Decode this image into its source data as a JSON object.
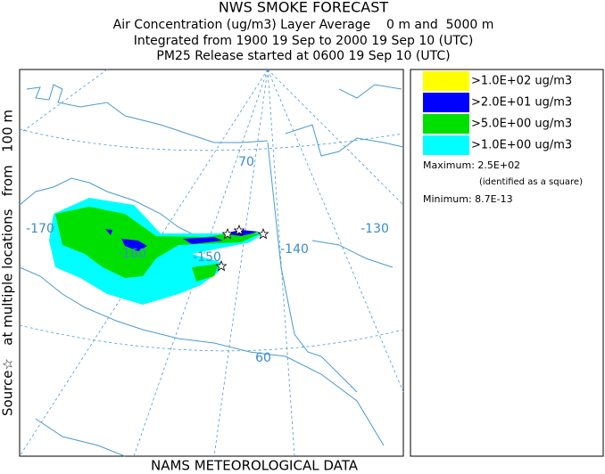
{
  "header": {
    "title": "NWS SMOKE FORECAST",
    "line1": "Air Concentration (ug/m3) Layer Average    0 m and  5000 m",
    "line2": "Integrated from 1900 19 Sep to 2000 19 Sep 10 (UTC)",
    "line3": "PM25 Release started at 0600 19 Sep 10 (UTC)"
  },
  "side_label": "Source☆   at multiple locations   from   100 m",
  "footer": "NAMS METEOROLOGICAL DATA",
  "map": {
    "labels": [
      "-170",
      "-160",
      "-150",
      "-140",
      "-130",
      "70",
      "60"
    ]
  },
  "legend": {
    "items": [
      {
        "label": ">1.0E+02 ug/m3",
        "color": "#ffff00"
      },
      {
        "label": ">2.0E+01 ug/m3",
        "color": "#0000ff"
      },
      {
        "label": ">5.0E+00 ug/m3",
        "color": "#00e000"
      },
      {
        "label": ">1.0E+00 ug/m3",
        "color": "#00ffff"
      }
    ],
    "maximum": "Maximum: 2.5E+02",
    "maximum_note": "(identified as a square)",
    "minimum": "Minimum: 8.7E-13"
  }
}
